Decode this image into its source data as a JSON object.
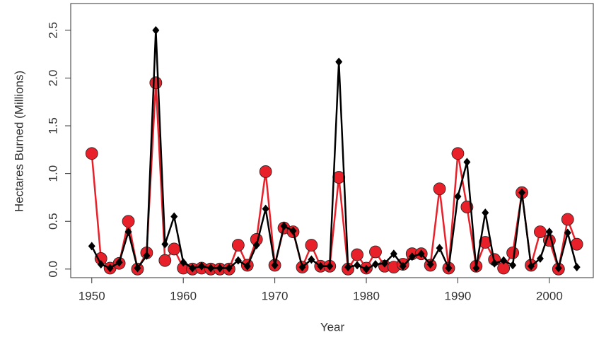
{
  "chart_data": {
    "type": "line",
    "x_label": "Year",
    "y_label": "Hectares Burned (Millions)",
    "x": [
      1950,
      1951,
      1952,
      1953,
      1954,
      1955,
      1956,
      1957,
      1958,
      1959,
      1960,
      1961,
      1962,
      1963,
      1964,
      1965,
      1966,
      1967,
      1968,
      1969,
      1970,
      1971,
      1972,
      1973,
      1974,
      1975,
      1976,
      1977,
      1978,
      1979,
      1980,
      1981,
      1982,
      1983,
      1984,
      1985,
      1986,
      1987,
      1988,
      1989,
      1990,
      1991,
      1992,
      1993,
      1994,
      1995,
      1996,
      1997,
      1998,
      1999,
      2000,
      2001,
      2002,
      2003
    ],
    "series": [
      {
        "color": "#e8202a",
        "marker": "circle",
        "values": [
          1.21,
          0.11,
          0.01,
          0.06,
          0.5,
          0.0,
          0.17,
          1.95,
          0.09,
          0.21,
          0.01,
          0.0,
          0.01,
          0.0,
          0.0,
          0.0,
          0.25,
          0.04,
          0.31,
          1.02,
          0.04,
          0.43,
          0.39,
          0.02,
          0.25,
          0.03,
          0.03,
          0.96,
          0.0,
          0.15,
          0.01,
          0.18,
          0.03,
          0.02,
          0.05,
          0.16,
          0.16,
          0.04,
          0.84,
          0.01,
          1.21,
          0.65,
          0.03,
          0.28,
          0.1,
          0.01,
          0.17,
          0.8,
          0.04,
          0.39,
          0.3,
          0.0,
          0.52,
          0.26
        ]
      },
      {
        "color": "#000000",
        "marker": "diamond",
        "values": [
          0.24,
          0.05,
          0.01,
          0.07,
          0.39,
          0.01,
          0.14,
          2.5,
          0.26,
          0.55,
          0.07,
          0.01,
          0.03,
          0.01,
          0.01,
          0.01,
          0.09,
          0.03,
          0.25,
          0.63,
          0.04,
          0.45,
          0.4,
          0.02,
          0.1,
          0.03,
          0.03,
          2.17,
          0.02,
          0.04,
          0.0,
          0.05,
          0.06,
          0.16,
          0.03,
          0.13,
          0.16,
          0.05,
          0.22,
          0.01,
          0.76,
          1.12,
          0.01,
          0.59,
          0.06,
          0.09,
          0.04,
          0.8,
          0.03,
          0.11,
          0.39,
          0.01,
          0.38,
          0.02
        ]
      }
    ],
    "xlim": [
      1947.7,
      2004.8
    ],
    "xticks": [
      1950,
      1960,
      1970,
      1980,
      1990,
      2000
    ],
    "ylim": [
      -0.09,
      2.78
    ],
    "yticks": [
      {
        "value": 0,
        "label": "0.0"
      },
      0.5,
      {
        "value": 1,
        "label": "1.0"
      },
      1.5,
      {
        "value": 2,
        "label": "2.0"
      },
      2.5
    ]
  }
}
